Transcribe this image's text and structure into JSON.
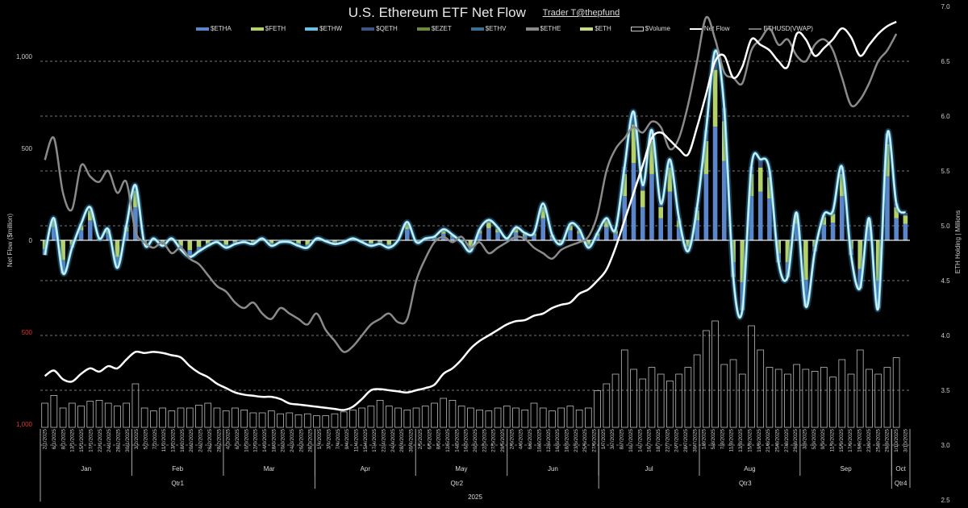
{
  "header": {
    "title": "U.S. Ethereum ETF Net Flow",
    "credit": "Trader T@thepfund"
  },
  "legend": [
    {
      "name": "$ETHA",
      "color": "#5b86c9",
      "kind": "bar"
    },
    {
      "name": "$FETH",
      "color": "#b5d16c",
      "kind": "bar"
    },
    {
      "name": "$ETHW",
      "color": "#6cc0e0",
      "kind": "bar"
    },
    {
      "name": "$QETH",
      "color": "#3d5585",
      "kind": "bar"
    },
    {
      "name": "$EZET",
      "color": "#6a8a3e",
      "kind": "bar"
    },
    {
      "name": "$ETHV",
      "color": "#3f6f8f",
      "kind": "bar"
    },
    {
      "name": "$ETHE",
      "color": "#8a8a8a",
      "kind": "bar"
    },
    {
      "name": "$ETH",
      "color": "#c6dc8a",
      "kind": "bar"
    },
    {
      "name": "$Volume",
      "color": "#cccccc",
      "kind": "box"
    },
    {
      "name": "Net Flow",
      "color": "#ffffff",
      "kind": "line"
    },
    {
      "name": "ETHUSD(VWAP)",
      "color": "#777777",
      "kind": "line"
    }
  ],
  "chart_data": {
    "type": "bar",
    "title": "U.S. Ethereum ETF Net Flow",
    "ylabel": "Net Flow ($million)",
    "y2label": "ETH Holding | Millions",
    "ylim": [
      -1000,
      1000
    ],
    "y2lim": [
      2.5,
      7.0
    ],
    "left_ticks": [
      {
        "label": "1,000",
        "value": 1000,
        "negative": false
      },
      {
        "label": "500",
        "value": 500,
        "negative": false
      },
      {
        "label": "0",
        "value": 0,
        "negative": false
      },
      {
        "label": "500",
        "value": -500,
        "negative": true
      },
      {
        "label": "1,000",
        "value": -1000,
        "negative": true
      }
    ],
    "right_ticks": [
      "7.0",
      "6.5",
      "6.0",
      "5.5",
      "5.0",
      "4.5",
      "4.0",
      "3.5",
      "3.0",
      "2.5"
    ],
    "grid": true,
    "legend_position": "top",
    "x_labels": [
      "2/1/2025",
      "6/1/2025",
      "8/1/2025",
      "13/1/2025",
      "15/1/2025",
      "17/1/2025",
      "22/1/2025",
      "24/1/2025",
      "28/1/2025",
      "30/1/2025",
      "3/2/2025",
      "5/2/2025",
      "7/2/2025",
      "11/2/2025",
      "13/2/2025",
      "18/2/2025",
      "20/2/2025",
      "24/2/2025",
      "26/2/2025",
      "28/2/2025",
      "4/3/2025",
      "6/3/2025",
      "10/3/2025",
      "12/3/2025",
      "14/3/2025",
      "18/3/2025",
      "20/3/2025",
      "24/3/2025",
      "26/3/2025",
      "28/3/2025",
      "1/4/2025",
      "3/4/2025",
      "7/4/2025",
      "9/4/2025",
      "11/4/2025",
      "15/4/2025",
      "17/4/2025",
      "22/4/2025",
      "24/4/2025",
      "28/4/2025",
      "30/4/2025",
      "2/5/2025",
      "6/5/2025",
      "8/5/2025",
      "12/5/2025",
      "14/5/2025",
      "16/5/2025",
      "20/5/2025",
      "22/5/2025",
      "27/5/2025",
      "29/5/2025",
      "2/6/2025",
      "4/6/2025",
      "6/6/2025",
      "10/6/2025",
      "12/6/2025",
      "16/6/2025",
      "18/6/2025",
      "23/6/2025",
      "25/6/2025",
      "27/6/2025",
      "1/7/2025",
      "3/7/2025",
      "8/7/2025",
      "10/7/2025",
      "14/7/2025",
      "16/7/2025",
      "18/7/2025",
      "22/7/2025",
      "24/7/2025",
      "28/7/2025",
      "30/7/2025",
      "1/8/2025",
      "5/8/2025",
      "7/8/2025",
      "11/8/2025",
      "13/8/2025",
      "15/8/2025",
      "19/8/2025",
      "21/8/2025",
      "25/8/2025",
      "27/8/2025",
      "29/8/2025",
      "3/9/2025",
      "5/9/2025",
      "9/9/2025",
      "11/9/2025",
      "15/9/2025",
      "17/9/2025",
      "19/9/2025",
      "23/9/2025",
      "25/9/2025",
      "29/9/2025",
      "1/10/2025",
      "3/10/2025"
    ],
    "months": [
      {
        "label": "Jan",
        "start": 0,
        "end": 10
      },
      {
        "label": "Feb",
        "start": 10,
        "end": 20
      },
      {
        "label": "Mar",
        "start": 20,
        "end": 30
      },
      {
        "label": "Apr",
        "start": 30,
        "end": 41
      },
      {
        "label": "May",
        "start": 41,
        "end": 51
      },
      {
        "label": "Jun",
        "start": 51,
        "end": 61
      },
      {
        "label": "Jul",
        "start": 61,
        "end": 72
      },
      {
        "label": "Aug",
        "start": 72,
        "end": 83
      },
      {
        "label": "Sep",
        "start": 83,
        "end": 93
      },
      {
        "label": "Oct",
        "start": 93,
        "end": 95
      }
    ],
    "quarters": [
      {
        "label": "Qtr1",
        "start": 0,
        "end": 30
      },
      {
        "label": "Qtr2",
        "start": 30,
        "end": 61
      },
      {
        "label": "Qtr3",
        "start": 61,
        "end": 93
      },
      {
        "label": "Qtr4",
        "start": 93,
        "end": 95
      }
    ],
    "year": "2025",
    "series": [
      {
        "name": "Net Flow ($M)",
        "axis": "left",
        "values": [
          -80,
          120,
          -180,
          -40,
          90,
          180,
          10,
          60,
          -150,
          80,
          300,
          -20,
          10,
          -30,
          10,
          -50,
          -90,
          -60,
          -30,
          -10,
          -40,
          -20,
          -10,
          -20,
          10,
          -30,
          -10,
          -10,
          -30,
          -40,
          10,
          -5,
          -20,
          -10,
          10,
          -10,
          -30,
          -20,
          -40,
          0,
          100,
          -10,
          10,
          20,
          60,
          30,
          -10,
          -60,
          60,
          110,
          70,
          10,
          70,
          40,
          40,
          200,
          30,
          -20,
          90,
          60,
          -40,
          40,
          120,
          60,
          400,
          700,
          300,
          600,
          200,
          440,
          120,
          -60,
          180,
          600,
          1030,
          720,
          -200,
          -380,
          400,
          440,
          380,
          -120,
          -200,
          150,
          -360,
          -60,
          140,
          160,
          400,
          -80,
          -260,
          120,
          -370,
          580,
          200,
          150
        ]
      },
      {
        "name": "ETH Holding (M)",
        "axis": "right",
        "values": [
          3.63,
          3.68,
          3.6,
          3.58,
          3.65,
          3.7,
          3.67,
          3.72,
          3.7,
          3.78,
          3.85,
          3.84,
          3.85,
          3.84,
          3.82,
          3.8,
          3.72,
          3.66,
          3.62,
          3.56,
          3.52,
          3.48,
          3.46,
          3.45,
          3.44,
          3.44,
          3.42,
          3.38,
          3.37,
          3.36,
          3.35,
          3.34,
          3.33,
          3.32,
          3.35,
          3.42,
          3.5,
          3.51,
          3.5,
          3.49,
          3.48,
          3.5,
          3.52,
          3.55,
          3.65,
          3.7,
          3.78,
          3.88,
          3.95,
          4.0,
          4.05,
          4.1,
          4.13,
          4.14,
          4.18,
          4.2,
          4.25,
          4.28,
          4.3,
          4.38,
          4.42,
          4.5,
          4.6,
          4.8,
          5.05,
          5.3,
          5.55,
          5.8,
          5.85,
          5.78,
          5.7,
          5.65,
          5.9,
          6.2,
          6.5,
          6.55,
          6.35,
          6.45,
          6.7,
          6.65,
          6.6,
          6.5,
          6.45,
          6.75,
          6.7,
          6.55,
          6.62,
          6.7,
          6.8,
          6.72,
          6.55,
          6.65,
          6.75,
          6.82,
          6.86
        ]
      },
      {
        "name": "ETHUSD(VWAP)",
        "axis": "right",
        "values": [
          5.6,
          5.8,
          5.3,
          5.15,
          5.55,
          5.45,
          5.4,
          5.5,
          5.3,
          5.4,
          4.95,
          4.85,
          4.8,
          4.85,
          4.75,
          4.8,
          4.7,
          4.65,
          4.55,
          4.45,
          4.4,
          4.3,
          4.25,
          4.3,
          4.2,
          4.15,
          4.25,
          4.2,
          4.15,
          4.1,
          4.2,
          4.05,
          3.95,
          3.85,
          3.9,
          4.0,
          4.1,
          4.15,
          4.2,
          4.12,
          4.15,
          4.5,
          4.7,
          4.85,
          4.9,
          4.85,
          4.9,
          4.8,
          4.85,
          4.75,
          4.8,
          4.85,
          4.9,
          4.88,
          4.8,
          4.75,
          4.7,
          4.78,
          4.82,
          4.85,
          4.9,
          5.1,
          5.5,
          5.7,
          5.8,
          5.9,
          5.85,
          5.95,
          5.9,
          5.7,
          5.8,
          6.1,
          6.5,
          6.9,
          6.7,
          6.4,
          6.35,
          6.3,
          6.6,
          6.7,
          6.8,
          6.65,
          6.7,
          6.55,
          6.5,
          6.65,
          6.7,
          6.6,
          6.35,
          6.1,
          6.15,
          6.3,
          6.5,
          6.6,
          6.75
        ]
      },
      {
        "name": "$Volume (rel.)",
        "axis": "left",
        "values": [
          0.25,
          0.33,
          0.2,
          0.25,
          0.22,
          0.27,
          0.28,
          0.25,
          0.22,
          0.25,
          0.45,
          0.2,
          0.17,
          0.2,
          0.17,
          0.2,
          0.2,
          0.23,
          0.25,
          0.2,
          0.17,
          0.2,
          0.18,
          0.15,
          0.15,
          0.17,
          0.14,
          0.15,
          0.13,
          0.14,
          0.12,
          0.12,
          0.14,
          0.16,
          0.18,
          0.2,
          0.22,
          0.28,
          0.22,
          0.2,
          0.18,
          0.2,
          0.22,
          0.25,
          0.3,
          0.28,
          0.22,
          0.2,
          0.18,
          0.17,
          0.2,
          0.22,
          0.2,
          0.18,
          0.25,
          0.2,
          0.17,
          0.2,
          0.22,
          0.18,
          0.2,
          0.38,
          0.45,
          0.55,
          0.8,
          0.6,
          0.5,
          0.62,
          0.55,
          0.48,
          0.55,
          0.62,
          0.75,
          1.0,
          1.1,
          0.65,
          0.7,
          0.55,
          1.05,
          0.8,
          0.62,
          0.6,
          0.55,
          0.65,
          0.6,
          0.58,
          0.62,
          0.52,
          0.7,
          0.55,
          0.8,
          0.6,
          0.55,
          0.62,
          0.72
        ]
      }
    ]
  }
}
